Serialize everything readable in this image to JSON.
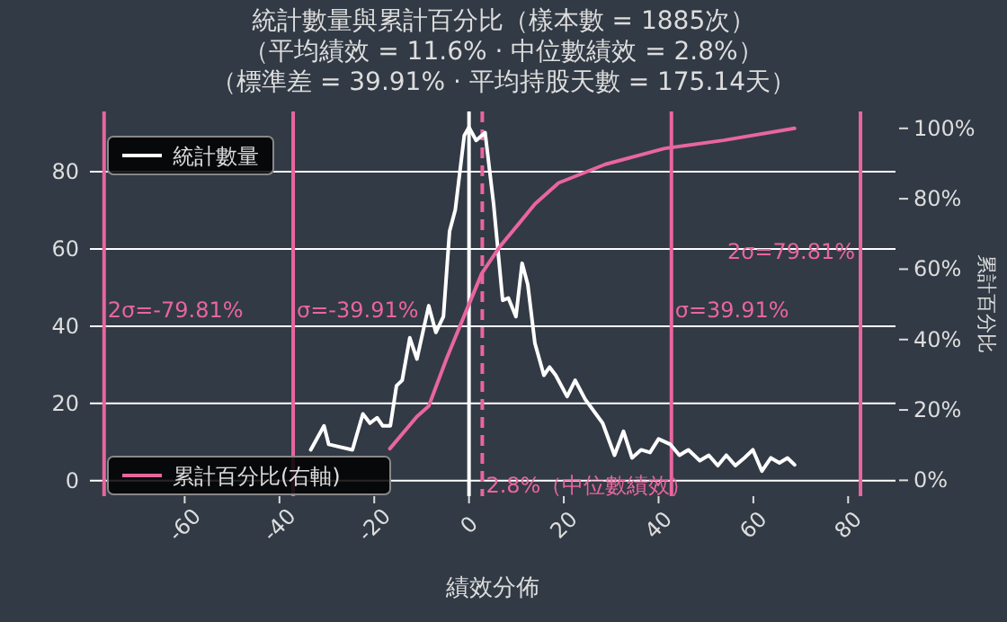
{
  "chart_data": {
    "type": "line",
    "title": "統計數量與累計百分比（樣本數 = 1885次）",
    "subtitle": "（平均績效 = 11.6% · 中位數績效 = 2.8%）",
    "annotations": [
      "（標準差 = 39.91% · 平均持股天數 = 175.14天）",
      {
        "text": "2σ=-79.81%",
        "x": -77.01,
        "y": 40
      },
      {
        "text": "σ=-39.91%",
        "x": -37.11,
        "y": 40
      },
      {
        "text": "σ=39.91%",
        "x": 42.71,
        "y": 40
      },
      {
        "text": "2σ=79.81%",
        "x": 82.61,
        "y": 55
      }
    ],
    "xlabel": "績效分佈",
    "y2label": "累計百分比",
    "xlim": [
      -80,
      90
    ],
    "xticks": [
      -60,
      -40,
      -20,
      0,
      20,
      40,
      60,
      80
    ],
    "ylim": [
      -4,
      95.6
    ],
    "yticks": [
      0,
      20,
      40,
      60,
      80
    ],
    "y2lim": [
      -4.5,
      104.8
    ],
    "y2ticks": [
      {
        "value": 0,
        "label": "0%"
      },
      {
        "value": 20,
        "label": "20%"
      },
      {
        "value": 40,
        "label": "40%"
      },
      {
        "value": 60,
        "label": "60%"
      },
      {
        "value": 80,
        "label": "80%"
      },
      {
        "value": 100,
        "label": "100%"
      }
    ],
    "grid": "y",
    "legend": "left",
    "series": [
      {
        "name": "統計數量",
        "color": "#ffffff",
        "x": [
          -33.4,
          -30.6,
          -29.6,
          -24.6,
          -22.4,
          -20.9,
          -19.4,
          -18.2,
          -16.6,
          -15.3,
          -14.1,
          -12.5,
          -11,
          -8.5,
          -7,
          -5.4,
          -4.1,
          -2.9,
          -1,
          0,
          1.5,
          3.4,
          5.2,
          7.1,
          8.3,
          9.9,
          11.2,
          12.4,
          13.9,
          15.8,
          17,
          18.3,
          20.7,
          22.4,
          24.5,
          28.2,
          30.7,
          32.6,
          34.4,
          36.3,
          38.2,
          40,
          42.5,
          44.4,
          46.3,
          48.7,
          50.6,
          52.5,
          54.3,
          56.2,
          58.1,
          59.9,
          61.8,
          63.7,
          65.5,
          67.2,
          68.7
        ],
        "values": [
          8,
          14.2,
          9.4,
          8,
          17.3,
          14.9,
          16.3,
          14.2,
          14.2,
          24.6,
          26,
          37,
          31.5,
          45.3,
          38.4,
          42.5,
          64.6,
          70.1,
          89.4,
          91.5,
          88.1,
          90.1,
          71.5,
          46.7,
          47.3,
          42.5,
          56.3,
          50.8,
          35.6,
          27.3,
          29.4,
          27.3,
          21.8,
          26,
          21.1,
          14.9,
          6.6,
          12.8,
          5.9,
          8,
          7.3,
          10.8,
          9.4,
          6.6,
          8,
          5.2,
          6.6,
          3.9,
          6.6,
          3.9,
          5.9,
          8,
          2.5,
          5.9,
          4.6,
          5.9,
          4.1
        ]
      },
      {
        "name": "累計百分比(右軸)",
        "color": "#e8669e",
        "axis": "y2",
        "x": [
          -16.7,
          -11,
          -8.5,
          -4.7,
          -1,
          2.7,
          6.5,
          10.2,
          13.9,
          18.9,
          28.8,
          41.3,
          53.7,
          68.7
        ],
        "values": [
          9,
          18.1,
          21.1,
          34.7,
          46.8,
          58.8,
          66.4,
          72.4,
          78.5,
          84.5,
          89.8,
          94.3,
          96.6,
          100
        ]
      }
    ],
    "ref_lines": [
      {
        "axis": "x",
        "value": -77.01,
        "color": "#e8669e"
      },
      {
        "axis": "x",
        "value": -37.11,
        "color": "#e8669e"
      },
      {
        "axis": "x",
        "value": 42.71,
        "color": "#e8669e"
      },
      {
        "axis": "x",
        "value": 82.61,
        "color": "#e8669e"
      },
      {
        "axis": "x",
        "value": 2.8,
        "label": "2.8%（中位數績效）",
        "color": "#e8669e",
        "line_style": "dashed"
      },
      {
        "axis": "x",
        "value": 0,
        "color": "#ffffff"
      }
    ]
  }
}
